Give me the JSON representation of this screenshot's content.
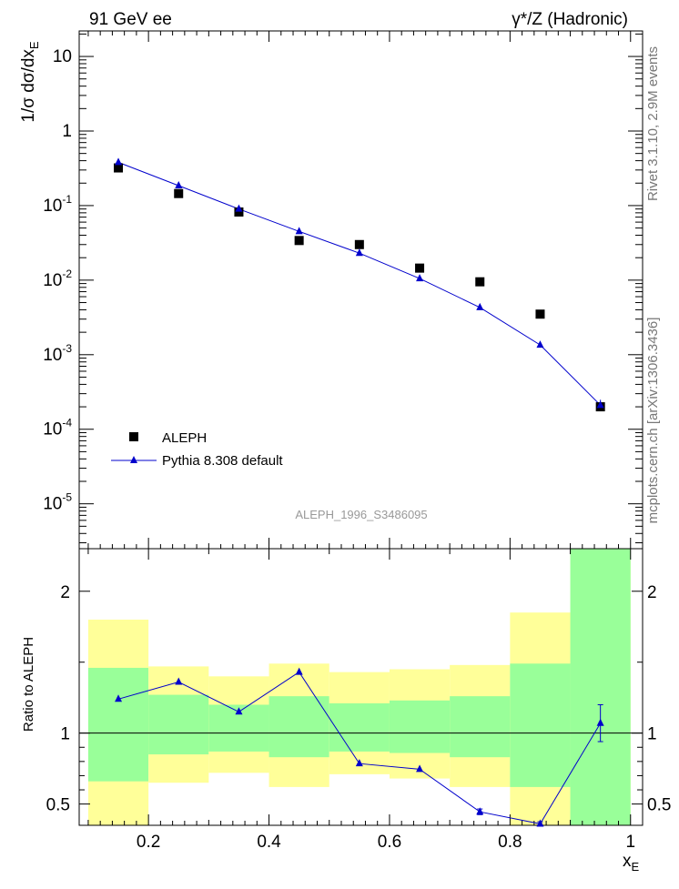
{
  "header": {
    "left": "91 GeV ee",
    "right": "γ*/Z (Hadronic)"
  },
  "side_labels": {
    "rivet": "Rivet 3.1.10,  2.9M events",
    "mcplots": "mcplots.cern.ch [arXiv:1306.3436]"
  },
  "analysis_id": "ALEPH_1996_S3486095",
  "chart_data": [
    {
      "type": "scatter",
      "panel": "main",
      "ylabel": "1/σ dσ/dx_E",
      "yscale": "log",
      "ylim": [
        2.5e-06,
        22
      ],
      "xlim": [
        0.085,
        1.02
      ],
      "y_tick_labels": [
        "10^-5",
        "10^-4",
        "10^-3",
        "10^-2",
        "10^-1",
        "1",
        "10"
      ],
      "legend_position": "bottom-left",
      "series": [
        {
          "name": "ALEPH",
          "marker": "square",
          "color": "#000000",
          "x": [
            0.15,
            0.25,
            0.35,
            0.45,
            0.55,
            0.65,
            0.75,
            0.85,
            0.95
          ],
          "y": [
            0.32,
            0.145,
            0.082,
            0.034,
            0.03,
            0.0145,
            0.0095,
            0.0035,
            0.0002
          ]
        },
        {
          "name": "Pythia 8.308 default",
          "marker": "triangle",
          "line": true,
          "color": "#0000cc",
          "x": [
            0.15,
            0.25,
            0.35,
            0.45,
            0.55,
            0.65,
            0.75,
            0.85,
            0.95
          ],
          "y": [
            0.38,
            0.185,
            0.09,
            0.045,
            0.023,
            0.0105,
            0.0043,
            0.00135,
            0.00021
          ]
        }
      ]
    },
    {
      "type": "line",
      "panel": "ratio",
      "xlabel": "x_E",
      "ylabel": "Ratio to ALEPH",
      "ylim": [
        0.35,
        2.3
      ],
      "xlim": [
        0.085,
        1.02
      ],
      "x_tick_labels": [
        "0.2",
        "0.4",
        "0.6",
        "0.8",
        "1"
      ],
      "y_tick_labels": [
        "0.5",
        "1",
        "2"
      ],
      "reference_line": 1,
      "bands": {
        "x_edges": [
          0.1,
          0.2,
          0.3,
          0.4,
          0.5,
          0.6,
          0.7,
          0.8,
          0.9,
          1.0
        ],
        "yellow_low": [
          0.35,
          0.65,
          0.72,
          0.62,
          0.71,
          0.68,
          0.62,
          0.35,
          0.35
        ],
        "yellow_high": [
          1.8,
          1.47,
          1.4,
          1.49,
          1.43,
          1.45,
          1.48,
          1.85,
          2.3
        ],
        "green_low": [
          0.66,
          0.85,
          0.87,
          0.83,
          0.87,
          0.86,
          0.83,
          0.62,
          0.35
        ],
        "green_high": [
          1.46,
          1.27,
          1.2,
          1.26,
          1.21,
          1.23,
          1.26,
          1.49,
          2.3
        ],
        "yellow_color": "#ffff99",
        "green_color": "#99ff99"
      },
      "series": [
        {
          "name": "Pythia 8.308 default",
          "color": "#0000cc",
          "x": [
            0.15,
            0.25,
            0.35,
            0.45,
            0.55,
            0.65,
            0.75,
            0.85,
            0.95
          ],
          "y": [
            1.24,
            1.36,
            1.15,
            1.43,
            0.785,
            0.745,
            0.445,
            0.36,
            1.07
          ]
        }
      ]
    }
  ]
}
